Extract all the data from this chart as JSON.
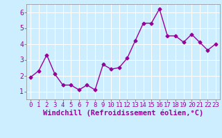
{
  "x": [
    0,
    1,
    2,
    3,
    4,
    5,
    6,
    7,
    8,
    9,
    10,
    11,
    12,
    13,
    14,
    15,
    16,
    17,
    18,
    19,
    20,
    21,
    22,
    23
  ],
  "y": [
    1.9,
    2.3,
    3.3,
    2.1,
    1.4,
    1.4,
    1.1,
    1.4,
    1.1,
    2.7,
    2.4,
    2.5,
    3.1,
    4.2,
    5.3,
    5.3,
    6.2,
    4.5,
    4.5,
    4.1,
    4.6,
    4.1,
    3.6,
    4.0
  ],
  "line_color": "#990099",
  "marker": "D",
  "markersize": 2.5,
  "linewidth": 1,
  "xlabel": "Windchill (Refroidissement éolien,°C)",
  "xlabel_fontsize": 7.5,
  "xlim": [
    -0.5,
    23.5
  ],
  "ylim": [
    0.5,
    6.5
  ],
  "yticks": [
    1,
    2,
    3,
    4,
    5,
    6
  ],
  "xticks": [
    0,
    1,
    2,
    3,
    4,
    5,
    6,
    7,
    8,
    9,
    10,
    11,
    12,
    13,
    14,
    15,
    16,
    17,
    18,
    19,
    20,
    21,
    22,
    23
  ],
  "background_color": "#cceeff",
  "grid_color": "#ffffff",
  "tick_fontsize": 6.5,
  "figsize": [
    3.2,
    2.0
  ],
  "dpi": 100
}
